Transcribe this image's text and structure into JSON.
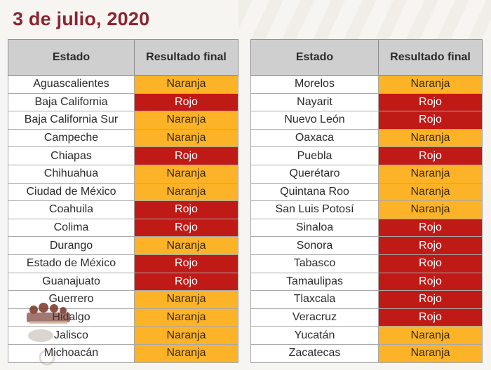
{
  "title": "3 de julio, 2020",
  "headers": {
    "estado": "Estado",
    "resultado": "Resultado final"
  },
  "colors": {
    "naranja": "#fcb327",
    "rojo": "#c01a17",
    "title": "#8b2331"
  },
  "left": [
    {
      "estado": "Aguascalientes",
      "resultado": "Naranja"
    },
    {
      "estado": "Baja California",
      "resultado": "Rojo"
    },
    {
      "estado": "Baja California Sur",
      "resultado": "Naranja"
    },
    {
      "estado": "Campeche",
      "resultado": "Naranja"
    },
    {
      "estado": "Chiapas",
      "resultado": "Rojo"
    },
    {
      "estado": "Chihuahua",
      "resultado": "Naranja"
    },
    {
      "estado": "Ciudad de México",
      "resultado": "Naranja"
    },
    {
      "estado": "Coahuila",
      "resultado": "Rojo"
    },
    {
      "estado": "Colima",
      "resultado": "Rojo"
    },
    {
      "estado": "Durango",
      "resultado": "Naranja"
    },
    {
      "estado": "Estado de México",
      "resultado": "Rojo"
    },
    {
      "estado": "Guanajuato",
      "resultado": "Rojo"
    },
    {
      "estado": "Guerrero",
      "resultado": "Naranja"
    },
    {
      "estado": "Hidalgo",
      "resultado": "Naranja"
    },
    {
      "estado": "Jalisco",
      "resultado": "Naranja"
    },
    {
      "estado": "Michoacán",
      "resultado": "Naranja"
    }
  ],
  "right": [
    {
      "estado": "Morelos",
      "resultado": "Naranja"
    },
    {
      "estado": "Nayarit",
      "resultado": "Rojo"
    },
    {
      "estado": "Nuevo León",
      "resultado": "Rojo"
    },
    {
      "estado": "Oaxaca",
      "resultado": "Naranja"
    },
    {
      "estado": "Puebla",
      "resultado": "Rojo"
    },
    {
      "estado": "Querétaro",
      "resultado": "Naranja"
    },
    {
      "estado": "Quintana Roo",
      "resultado": "Naranja"
    },
    {
      "estado": "San Luis Potosí",
      "resultado": "Naranja"
    },
    {
      "estado": "Sinaloa",
      "resultado": "Rojo"
    },
    {
      "estado": "Sonora",
      "resultado": "Rojo"
    },
    {
      "estado": "Tabasco",
      "resultado": "Rojo"
    },
    {
      "estado": "Tamaulipas",
      "resultado": "Rojo"
    },
    {
      "estado": "Tlaxcala",
      "resultado": "Rojo"
    },
    {
      "estado": "Veracruz",
      "resultado": "Rojo"
    },
    {
      "estado": "Yucatán",
      "resultado": "Naranja"
    },
    {
      "estado": "Zacatecas",
      "resultado": "Naranja"
    }
  ]
}
